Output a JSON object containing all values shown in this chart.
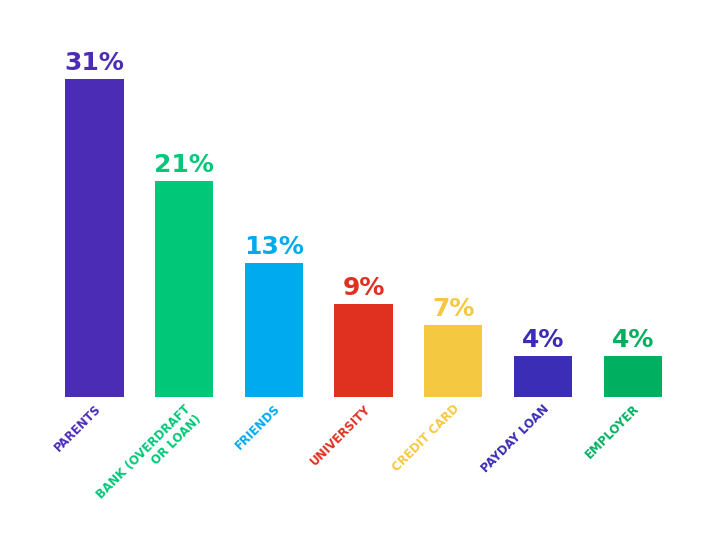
{
  "categories": [
    "PARENTS",
    "BANK (OVERDRAFT\nOR LOAN)",
    "FRIENDS",
    "UNIVERSITY",
    "CREDIT CARD",
    "PAYDAY LOAN",
    "EMPLOYER"
  ],
  "values": [
    31,
    21,
    13,
    9,
    7,
    4,
    4
  ],
  "bar_colors": [
    "#4B2DB5",
    "#00C878",
    "#00AAEE",
    "#E03020",
    "#F5C842",
    "#3B2DB5",
    "#00B060"
  ],
  "label_colors": [
    "#4B2DB5",
    "#00C878",
    "#00AAEE",
    "#E03020",
    "#F5C842",
    "#3B2DB5",
    "#00B060"
  ],
  "tick_colors": [
    "#4B2DB5",
    "#00C878",
    "#00AAEE",
    "#E03020",
    "#F5C842",
    "#3B2DB5",
    "#00B060"
  ],
  "labels": [
    "31%",
    "21%",
    "13%",
    "9%",
    "7%",
    "4%",
    "4%"
  ],
  "background_color": "#ffffff",
  "bar_width": 0.65,
  "ylim": [
    0,
    36
  ],
  "label_fontsize": 18,
  "tick_fontsize": 8.5,
  "tick_rotation": 45
}
